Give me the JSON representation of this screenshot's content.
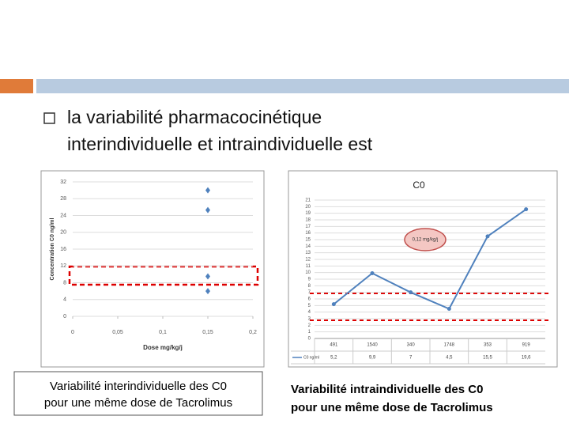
{
  "slide": {
    "bullet": "la variabilité pharmacocinétique interindividuelle et intraindividuelle est",
    "caption_left": [
      "Variabilité interindividuelle des C0",
      "pour une même dose de Tacrolimus"
    ],
    "caption_right": [
      "Variabilité intraindividuelle des C0",
      "pour une même dose de Tacrolimus"
    ]
  },
  "chart_data": [
    {
      "type": "scatter",
      "x_label": "Dose mg/kg/j",
      "y_label": "Concentration C0 ng/ml",
      "x": [
        0.15,
        0.15,
        0.15,
        0.15
      ],
      "values": [
        30,
        25.3,
        9.5,
        6
      ],
      "color": "#4f81bd",
      "xlim": [
        0,
        0.2
      ],
      "xticks": [
        0,
        {
          "value": 0.05,
          "label": "0,05"
        },
        {
          "value": 0.1,
          "label": "0,1"
        },
        {
          "value": 0.15,
          "label": "0,15"
        },
        {
          "value": 0.2,
          "label": "0,2"
        }
      ],
      "ylim": [
        0,
        32
      ],
      "yticks": [
        0,
        4,
        8,
        12,
        16,
        20,
        24,
        28,
        32
      ],
      "grid": true
    },
    {
      "type": "line",
      "title": "C0",
      "annotation": "0,12 mg/kg/j",
      "categories": [
        "491",
        "1540",
        "340",
        "1748",
        "353",
        "919"
      ],
      "series": [
        {
          "name": "C0 ng/ml",
          "color": "#4f81bd",
          "values": [
            5.2,
            9.9,
            7,
            4.5,
            15.5,
            19.6
          ],
          "value_labels": [
            "5,2",
            "9,9",
            "7",
            "4,5",
            "15,5",
            "19,6"
          ]
        }
      ],
      "ylim": [
        0,
        21
      ],
      "yticks": [
        0,
        1,
        2,
        3,
        4,
        5,
        6,
        7,
        8,
        9,
        10,
        11,
        12,
        13,
        14,
        15,
        16,
        17,
        18,
        19,
        20,
        21
      ],
      "grid": true
    }
  ]
}
